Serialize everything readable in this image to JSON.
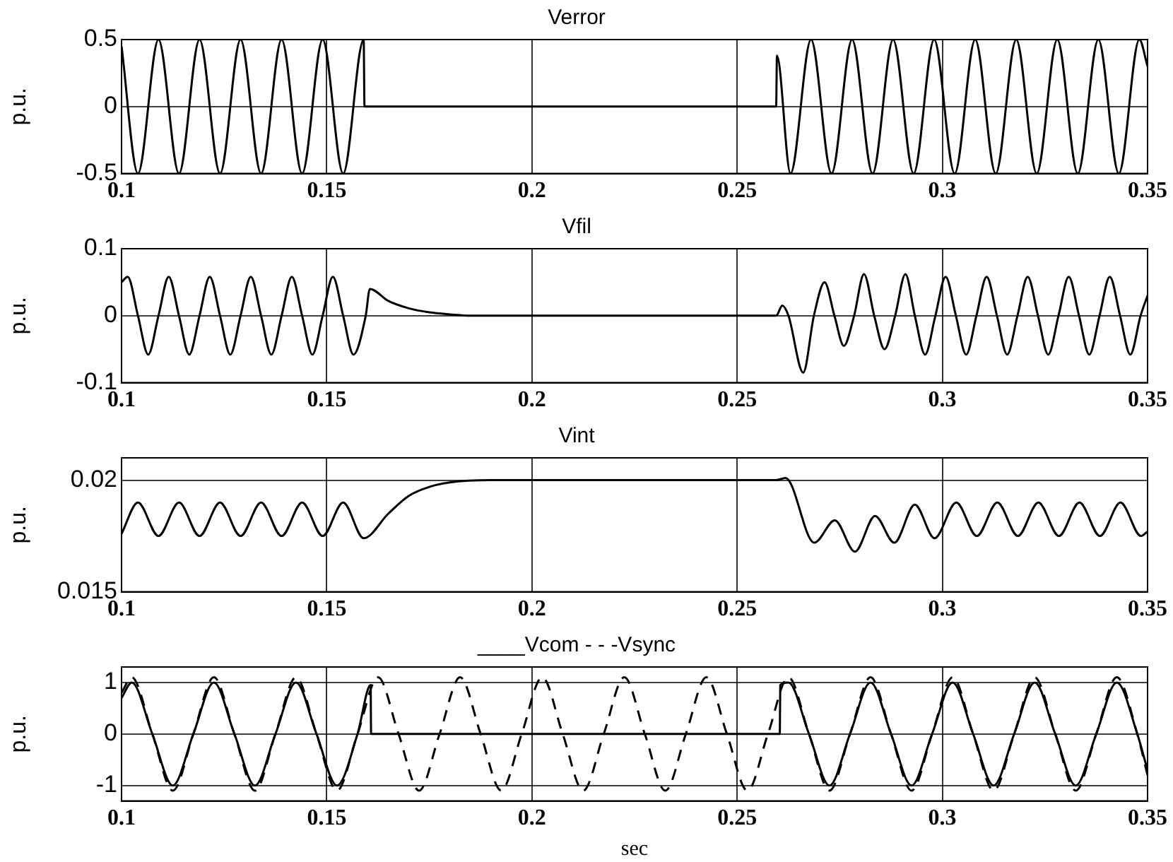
{
  "chart_data": [
    {
      "type": "line",
      "title": "Verror",
      "ylabel": "p.u.",
      "xlim": [
        0.1,
        0.35
      ],
      "xticks": [
        0.1,
        0.15,
        0.2,
        0.25,
        0.3,
        0.35
      ],
      "ylim": [
        -0.5,
        0.5
      ],
      "yticks": [
        -0.5,
        0,
        0.5
      ],
      "grid": true,
      "series": [
        {
          "color": "#000000",
          "x": [
            0.1,
            0.104,
            0.109,
            0.114,
            0.119,
            0.124,
            0.129,
            0.134,
            0.139,
            0.144,
            0.149,
            0.154,
            0.159,
            0.1592,
            0.2595,
            0.2597,
            0.263,
            0.268,
            0.273,
            0.278,
            0.283,
            0.288,
            0.293,
            0.298,
            0.303,
            0.308,
            0.313,
            0.318,
            0.323,
            0.328,
            0.333,
            0.338,
            0.343,
            0.348,
            0.35
          ],
          "values": [
            0.45,
            -0.5,
            0.5,
            -0.5,
            0.5,
            -0.5,
            0.5,
            -0.5,
            0.5,
            -0.5,
            0.5,
            -0.5,
            0.5,
            0,
            0,
            0.38,
            -0.5,
            0.5,
            -0.5,
            0.5,
            -0.5,
            0.5,
            -0.5,
            0.5,
            -0.5,
            0.5,
            -0.5,
            0.5,
            -0.5,
            0.5,
            -0.5,
            0.5,
            -0.5,
            0.5,
            0.3
          ]
        }
      ]
    },
    {
      "type": "line",
      "title": "Vfil",
      "ylabel": "p.u.",
      "xlim": [
        0.1,
        0.35
      ],
      "xticks": [
        0.1,
        0.15,
        0.2,
        0.25,
        0.3,
        0.35
      ],
      "ylim": [
        -0.1,
        0.1
      ],
      "yticks": [
        -0.1,
        0,
        0.1
      ],
      "grid": true,
      "series": [
        {
          "color": "#000000",
          "x": [
            0.1,
            0.1015,
            0.104,
            0.1065,
            0.109,
            0.1115,
            0.114,
            0.1165,
            0.119,
            0.1215,
            0.124,
            0.1265,
            0.129,
            0.1315,
            0.134,
            0.1365,
            0.139,
            0.1415,
            0.144,
            0.1465,
            0.149,
            0.1515,
            0.154,
            0.1565,
            0.1595,
            0.1605,
            0.165,
            0.17,
            0.175,
            0.18,
            0.185,
            0.2595,
            0.261,
            0.2625,
            0.2661,
            0.2687,
            0.2713,
            0.2737,
            0.276,
            0.2785,
            0.2809,
            0.2834,
            0.2859,
            0.2885,
            0.291,
            0.2933,
            0.2958,
            0.2983,
            0.3008,
            0.3033,
            0.3058,
            0.3083,
            0.3108,
            0.3133,
            0.3158,
            0.3183,
            0.3208,
            0.3233,
            0.3258,
            0.3283,
            0.3308,
            0.3333,
            0.3358,
            0.3383,
            0.3408,
            0.3433,
            0.3458,
            0.3483,
            0.35
          ],
          "values": [
            0.05,
            0.058,
            0,
            -0.058,
            0,
            0.058,
            0,
            -0.058,
            0,
            0.058,
            0,
            -0.058,
            0,
            0.058,
            0,
            -0.058,
            0,
            0.058,
            0,
            -0.058,
            0,
            0.058,
            0,
            -0.058,
            0,
            0.04,
            0.022,
            0.011,
            0.005,
            0.002,
            0,
            0,
            0.015,
            0,
            -0.085,
            0,
            0.05,
            0,
            -0.045,
            0,
            0.062,
            0,
            -0.05,
            0,
            0.062,
            0,
            -0.058,
            0,
            0.058,
            0,
            -0.058,
            0,
            0.058,
            0,
            -0.058,
            0,
            0.058,
            0,
            -0.058,
            0,
            0.058,
            0,
            -0.058,
            0,
            0.058,
            0,
            -0.058,
            0,
            0.03
          ]
        }
      ]
    },
    {
      "type": "line",
      "title": "Vint",
      "ylabel": "p.u.",
      "xlim": [
        0.1,
        0.35
      ],
      "xticks": [
        0.1,
        0.15,
        0.2,
        0.25,
        0.3,
        0.35
      ],
      "ylim": [
        0.015,
        0.021
      ],
      "yticks": [
        0.015,
        0.02
      ],
      "grid": true,
      "series": [
        {
          "color": "#000000",
          "x": [
            0.1,
            0.104,
            0.109,
            0.114,
            0.119,
            0.124,
            0.129,
            0.134,
            0.139,
            0.144,
            0.149,
            0.154,
            0.159,
            0.165,
            0.17,
            0.175,
            0.18,
            0.19,
            0.2595,
            0.2618,
            0.2688,
            0.2738,
            0.2787,
            0.2836,
            0.2883,
            0.2933,
            0.2981,
            0.3034,
            0.3084,
            0.3134,
            0.3184,
            0.3234,
            0.3284,
            0.3334,
            0.3384,
            0.3434,
            0.3484,
            0.35
          ],
          "values": [
            0.0176,
            0.019,
            0.0175,
            0.019,
            0.0175,
            0.019,
            0.0175,
            0.019,
            0.0175,
            0.019,
            0.0175,
            0.019,
            0.0174,
            0.0185,
            0.0193,
            0.0197,
            0.0199,
            0.02,
            0.02,
            0.0201,
            0.0172,
            0.0182,
            0.0168,
            0.0184,
            0.0172,
            0.0189,
            0.0174,
            0.019,
            0.0175,
            0.019,
            0.0175,
            0.019,
            0.0175,
            0.019,
            0.0175,
            0.019,
            0.0175,
            0.0177
          ]
        }
      ]
    },
    {
      "type": "line",
      "title": "____Vcom - - -Vsync",
      "xlabel": "sec",
      "ylabel": "p.u.",
      "xlim": [
        0.1,
        0.35
      ],
      "xticks": [
        0.1,
        0.15,
        0.2,
        0.25,
        0.3,
        0.35
      ],
      "ylim": [
        -1.3,
        1.3
      ],
      "yticks": [
        -1,
        0,
        1
      ],
      "grid": true,
      "series": [
        {
          "color": "#000000",
          "line_style": "dashed",
          "x": [
            0.1,
            0.1025,
            0.1075,
            0.1125,
            0.1175,
            0.1225,
            0.1275,
            0.1325,
            0.1375,
            0.1425,
            0.1475,
            0.1525,
            0.1575,
            0.1625,
            0.1675,
            0.1725,
            0.1775,
            0.1825,
            0.1875,
            0.1925,
            0.1975,
            0.2025,
            0.2075,
            0.2125,
            0.2175,
            0.2225,
            0.2275,
            0.2325,
            0.2375,
            0.2425,
            0.2475,
            0.2525,
            0.2575,
            0.2625,
            0.2675,
            0.2725,
            0.2775,
            0.2825,
            0.2875,
            0.2925,
            0.2975,
            0.3025,
            0.3075,
            0.3125,
            0.3175,
            0.3225,
            0.3275,
            0.3325,
            0.3375,
            0.3425,
            0.3475,
            0.35
          ],
          "values": [
            0.8,
            1.1,
            0,
            -1.1,
            0,
            1.1,
            0,
            -1.1,
            0,
            1.1,
            0,
            -1.1,
            0,
            1.1,
            0,
            -1.1,
            0,
            1.1,
            0,
            -1.1,
            0,
            1.1,
            0,
            -1.1,
            0,
            1.1,
            0,
            -1.1,
            0,
            1.1,
            0,
            -1.1,
            0,
            1.1,
            0,
            -1.1,
            0,
            1.1,
            0,
            -1.1,
            0,
            1.1,
            0,
            -1.1,
            0,
            1.1,
            0,
            -1.1,
            0,
            1.1,
            0,
            -0.8
          ]
        },
        {
          "color": "#000000",
          "line_style": "solid",
          "x": [
            0.1,
            0.1025,
            0.1075,
            0.1125,
            0.1175,
            0.1225,
            0.1275,
            0.1325,
            0.1375,
            0.1425,
            0.1475,
            0.1525,
            0.1575,
            0.1607,
            0.1608,
            0.2604,
            0.2605,
            0.2625,
            0.2675,
            0.2725,
            0.2775,
            0.2825,
            0.2875,
            0.2925,
            0.2975,
            0.3025,
            0.3075,
            0.3125,
            0.3175,
            0.3225,
            0.3275,
            0.3325,
            0.3375,
            0.3425,
            0.3475,
            0.35
          ],
          "values": [
            0.7,
            1,
            0,
            -1,
            0,
            1,
            0,
            -1,
            0,
            1,
            0,
            -1,
            0,
            0.95,
            0,
            0,
            0.95,
            1,
            0,
            -1,
            0,
            1,
            0,
            -1,
            0,
            1,
            0,
            -1,
            0,
            1,
            0,
            -1,
            0,
            1,
            0,
            -0.7
          ]
        }
      ]
    }
  ]
}
